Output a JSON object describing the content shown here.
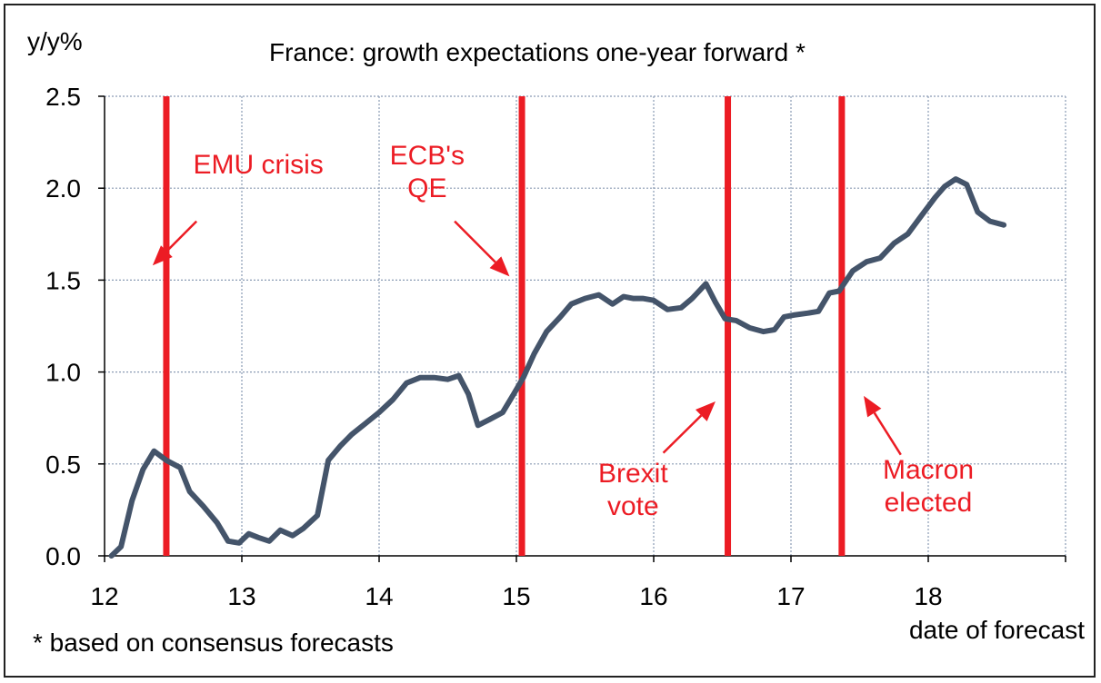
{
  "chart_data": {
    "type": "line",
    "title": "France: growth expectations one-year forward *",
    "ylabel": "y/y%",
    "xlabel": "date of forecast",
    "footnote": "* based on consensus forecasts",
    "xlim": [
      12,
      19
    ],
    "ylim": [
      0,
      2.5
    ],
    "x_ticks": [
      12,
      13,
      14,
      15,
      16,
      17,
      18
    ],
    "x_tick_labels": [
      "12",
      "13",
      "14",
      "15",
      "16",
      "17",
      "18"
    ],
    "y_ticks": [
      0,
      0.5,
      1,
      1.5,
      2,
      2.5
    ],
    "y_tick_labels": [
      "0.0",
      "0.5",
      "1.0",
      "1.5",
      "2.0",
      "2.5"
    ],
    "grid": true,
    "line_color": "#44546a",
    "event_color": "#ec1c24",
    "series": [
      {
        "x": [
          12.05,
          12.12,
          12.2,
          12.28,
          12.36,
          12.45,
          12.55,
          12.62,
          12.72,
          12.82,
          12.9,
          12.98,
          13.05,
          13.12,
          13.2,
          13.28,
          13.37,
          13.45,
          13.55,
          13.63,
          13.72,
          13.8,
          13.9,
          14.0,
          14.1,
          14.2,
          14.3,
          14.4,
          14.5,
          14.58,
          14.65,
          14.72,
          14.8,
          14.9,
          14.98,
          15.05,
          15.13,
          15.22,
          15.32,
          15.4,
          15.5,
          15.6,
          15.7,
          15.78,
          15.85,
          15.92,
          16.0,
          16.1,
          16.2,
          16.28,
          16.38,
          16.45,
          16.52,
          16.6,
          16.7,
          16.8,
          16.88,
          16.95,
          17.02,
          17.12,
          17.2,
          17.28,
          17.35,
          17.45,
          17.55,
          17.65,
          17.75,
          17.85,
          17.95,
          18.05,
          18.12,
          18.2,
          18.28,
          18.36,
          18.45,
          18.55
        ],
        "y": [
          0.0,
          0.05,
          0.3,
          0.47,
          0.57,
          0.52,
          0.48,
          0.35,
          0.27,
          0.18,
          0.08,
          0.07,
          0.12,
          0.1,
          0.08,
          0.14,
          0.11,
          0.15,
          0.22,
          0.52,
          0.6,
          0.66,
          0.72,
          0.78,
          0.85,
          0.94,
          0.97,
          0.97,
          0.96,
          0.98,
          0.88,
          0.71,
          0.74,
          0.78,
          0.88,
          0.97,
          1.1,
          1.22,
          1.3,
          1.37,
          1.4,
          1.42,
          1.37,
          1.41,
          1.4,
          1.4,
          1.39,
          1.34,
          1.35,
          1.4,
          1.48,
          1.38,
          1.29,
          1.28,
          1.24,
          1.22,
          1.23,
          1.3,
          1.31,
          1.32,
          1.33,
          1.43,
          1.44,
          1.55,
          1.6,
          1.62,
          1.7,
          1.75,
          1.85,
          1.95,
          2.01,
          2.05,
          2.02,
          1.87,
          1.82,
          1.8
        ]
      }
    ],
    "events": [
      {
        "x": 12.45,
        "label": "EMU crisis"
      },
      {
        "x": 15.04,
        "label": "ECB's QE"
      },
      {
        "x": 16.54,
        "label": "Brexit vote"
      },
      {
        "x": 17.37,
        "label": "Macron elected"
      }
    ],
    "annotations": [
      {
        "lines": [
          "EMU crisis"
        ],
        "label_x": 13.12,
        "label_y": 2.08,
        "arrow_from": [
          12.67,
          1.82
        ],
        "arrow_to": [
          12.35,
          1.58
        ]
      },
      {
        "lines": [
          "ECB's",
          "QE"
        ],
        "label_x": 14.35,
        "label_y": 2.13,
        "arrow_from": [
          14.55,
          1.82
        ],
        "arrow_to": [
          14.95,
          1.52
        ]
      },
      {
        "lines": [
          "Brexit",
          "vote"
        ],
        "label_x": 15.85,
        "label_y": 0.4,
        "arrow_from": [
          16.07,
          0.56
        ],
        "arrow_to": [
          16.45,
          0.84
        ]
      },
      {
        "lines": [
          "Macron",
          "elected"
        ],
        "label_x": 18.0,
        "label_y": 0.42,
        "arrow_from": [
          17.8,
          0.55
        ],
        "arrow_to": [
          17.53,
          0.87
        ]
      }
    ]
  }
}
